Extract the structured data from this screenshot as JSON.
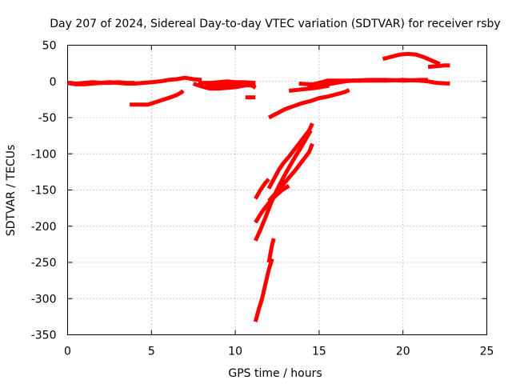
{
  "chart_data": {
    "type": "line",
    "title": "Day 207 of 2024, Sidereal Day-to-day VTEC variation (SDTVAR) for receiver rsby",
    "xlabel": "GPS time / hours",
    "ylabel": "SDTVAR / TECUs",
    "xlim": [
      0,
      25
    ],
    "ylim": [
      -350,
      50
    ],
    "xticks": [
      0,
      5,
      10,
      15,
      20,
      25
    ],
    "yticks": [
      50,
      0,
      -50,
      -100,
      -150,
      -200,
      -250,
      -300,
      -350
    ],
    "grid": true,
    "series_color": "#ff0000",
    "segments": [
      {
        "points": [
          [
            0.0,
            -2
          ],
          [
            0.5,
            -4
          ],
          [
            1,
            -4
          ],
          [
            1.5,
            -3
          ],
          [
            2,
            -2
          ],
          [
            2.5,
            -1
          ],
          [
            3,
            -2
          ],
          [
            3.5,
            -3
          ],
          [
            4,
            -3
          ],
          [
            4.5,
            -2
          ],
          [
            5,
            -1
          ],
          [
            5.5,
            0
          ],
          [
            6,
            2
          ],
          [
            6.5,
            3
          ],
          [
            7,
            5
          ],
          [
            7.5,
            3
          ],
          [
            8,
            2
          ]
        ]
      },
      {
        "points": [
          [
            0.0,
            -2
          ],
          [
            0.5,
            -3
          ],
          [
            1.0,
            -2
          ],
          [
            1.5,
            -1
          ],
          [
            2.0,
            -2
          ],
          [
            2.5,
            -2
          ],
          [
            3.0,
            -1
          ],
          [
            3.5,
            -2
          ],
          [
            4.0,
            -2
          ]
        ]
      },
      {
        "points": [
          [
            3.7,
            -32
          ],
          [
            4.3,
            -32
          ],
          [
            4.8,
            -32
          ],
          [
            5.2,
            -29
          ],
          [
            5.6,
            -26
          ],
          [
            6.0,
            -23
          ],
          [
            6.5,
            -19
          ],
          [
            6.8,
            -15
          ],
          [
            6.9,
            -13
          ]
        ]
      },
      {
        "points": [
          [
            7.5,
            -3
          ],
          [
            8.0,
            -7
          ],
          [
            8.5,
            -10
          ],
          [
            9.0,
            -10
          ],
          [
            9.5,
            -9
          ],
          [
            10.0,
            -8
          ],
          [
            10.5,
            -6
          ],
          [
            11.2,
            -3
          ]
        ]
      },
      {
        "points": [
          [
            7.8,
            -2
          ],
          [
            8.5,
            -2
          ],
          [
            9.0,
            -1
          ],
          [
            9.5,
            0
          ],
          [
            10.0,
            -1
          ],
          [
            10.5,
            -1
          ],
          [
            11.2,
            -2
          ]
        ]
      },
      {
        "points": [
          [
            8.2,
            -6
          ],
          [
            9.0,
            -6
          ],
          [
            9.8,
            -5
          ],
          [
            10.5,
            -5
          ],
          [
            11.2,
            -6
          ]
        ]
      },
      {
        "points": [
          [
            10.6,
            -22
          ],
          [
            11.2,
            -22
          ]
        ]
      },
      {
        "points": [
          [
            10.8,
            -2
          ],
          [
            11.2,
            -9
          ]
        ]
      },
      {
        "points": [
          [
            12.0,
            -50
          ],
          [
            12.5,
            -44
          ],
          [
            13.0,
            -38
          ],
          [
            13.5,
            -34
          ],
          [
            14.0,
            -30
          ],
          [
            14.5,
            -27
          ],
          [
            15.0,
            -23
          ],
          [
            15.5,
            -21
          ],
          [
            16.0,
            -18
          ],
          [
            16.5,
            -15
          ],
          [
            16.8,
            -12
          ]
        ]
      },
      {
        "points": [
          [
            13.2,
            -13
          ],
          [
            14.0,
            -11
          ],
          [
            14.8,
            -9
          ],
          [
            15.3,
            -7
          ],
          [
            15.6,
            -6
          ]
        ]
      },
      {
        "points": [
          [
            13.8,
            -3
          ],
          [
            14.4,
            -4
          ],
          [
            15.0,
            -5
          ],
          [
            15.5,
            -4
          ],
          [
            16.0,
            -2
          ],
          [
            16.5,
            0
          ],
          [
            17.0,
            1
          ],
          [
            17.5,
            1
          ]
        ]
      },
      {
        "points": [
          [
            14.3,
            -6
          ],
          [
            15.0,
            -2
          ],
          [
            15.5,
            1
          ],
          [
            16.0,
            1
          ],
          [
            17.0,
            1
          ],
          [
            18.0,
            1
          ],
          [
            19.0,
            1
          ],
          [
            20.0,
            2
          ],
          [
            21.0,
            1
          ],
          [
            21.5,
            0
          ],
          [
            22.0,
            -2
          ],
          [
            22.8,
            -3
          ]
        ]
      },
      {
        "points": [
          [
            17.0,
            1
          ],
          [
            18.0,
            2
          ],
          [
            19.0,
            2
          ],
          [
            20.0,
            1
          ],
          [
            21.0,
            2
          ],
          [
            21.5,
            2
          ]
        ]
      },
      {
        "points": [
          [
            18.8,
            31
          ],
          [
            19.3,
            34
          ],
          [
            19.8,
            37
          ],
          [
            20.3,
            38
          ],
          [
            20.8,
            37
          ],
          [
            21.3,
            33
          ],
          [
            21.8,
            28
          ],
          [
            22.2,
            24
          ]
        ]
      },
      {
        "points": [
          [
            21.5,
            20
          ],
          [
            22.0,
            21
          ],
          [
            22.5,
            22
          ],
          [
            22.8,
            22
          ]
        ]
      },
      {
        "points": [
          [
            11.2,
            -162
          ],
          [
            11.5,
            -150
          ],
          [
            11.8,
            -140
          ],
          [
            12.0,
            -135
          ]
        ]
      },
      {
        "points": [
          [
            11.2,
            -195
          ],
          [
            11.6,
            -180
          ],
          [
            12.0,
            -168
          ],
          [
            12.4,
            -158
          ],
          [
            12.8,
            -150
          ],
          [
            13.2,
            -144
          ]
        ]
      },
      {
        "points": [
          [
            11.2,
            -220
          ],
          [
            11.5,
            -205
          ],
          [
            11.8,
            -188
          ],
          [
            12.1,
            -170
          ],
          [
            12.4,
            -154
          ],
          [
            12.7,
            -140
          ],
          [
            13.0,
            -127
          ],
          [
            13.3,
            -115
          ],
          [
            13.6,
            -103
          ],
          [
            13.9,
            -92
          ],
          [
            14.2,
            -80
          ],
          [
            14.5,
            -68
          ]
        ]
      },
      {
        "points": [
          [
            11.2,
            -332
          ],
          [
            11.4,
            -315
          ],
          [
            11.6,
            -300
          ],
          [
            11.8,
            -280
          ],
          [
            12.0,
            -260
          ],
          [
            12.2,
            -245
          ]
        ]
      },
      {
        "points": [
          [
            12.0,
            -250
          ],
          [
            12.2,
            -225
          ],
          [
            12.3,
            -217
          ]
        ]
      },
      {
        "points": [
          [
            12.0,
            -148
          ],
          [
            12.3,
            -135
          ],
          [
            12.6,
            -122
          ],
          [
            12.9,
            -112
          ],
          [
            13.2,
            -104
          ],
          [
            13.5,
            -95
          ],
          [
            13.8,
            -86
          ],
          [
            14.1,
            -77
          ],
          [
            14.4,
            -68
          ],
          [
            14.6,
            -58
          ]
        ]
      },
      {
        "points": [
          [
            12.0,
            -165
          ],
          [
            12.4,
            -155
          ],
          [
            12.8,
            -144
          ],
          [
            13.2,
            -133
          ],
          [
            13.6,
            -122
          ],
          [
            14.0,
            -110
          ],
          [
            14.4,
            -98
          ],
          [
            14.6,
            -86
          ]
        ]
      }
    ]
  }
}
